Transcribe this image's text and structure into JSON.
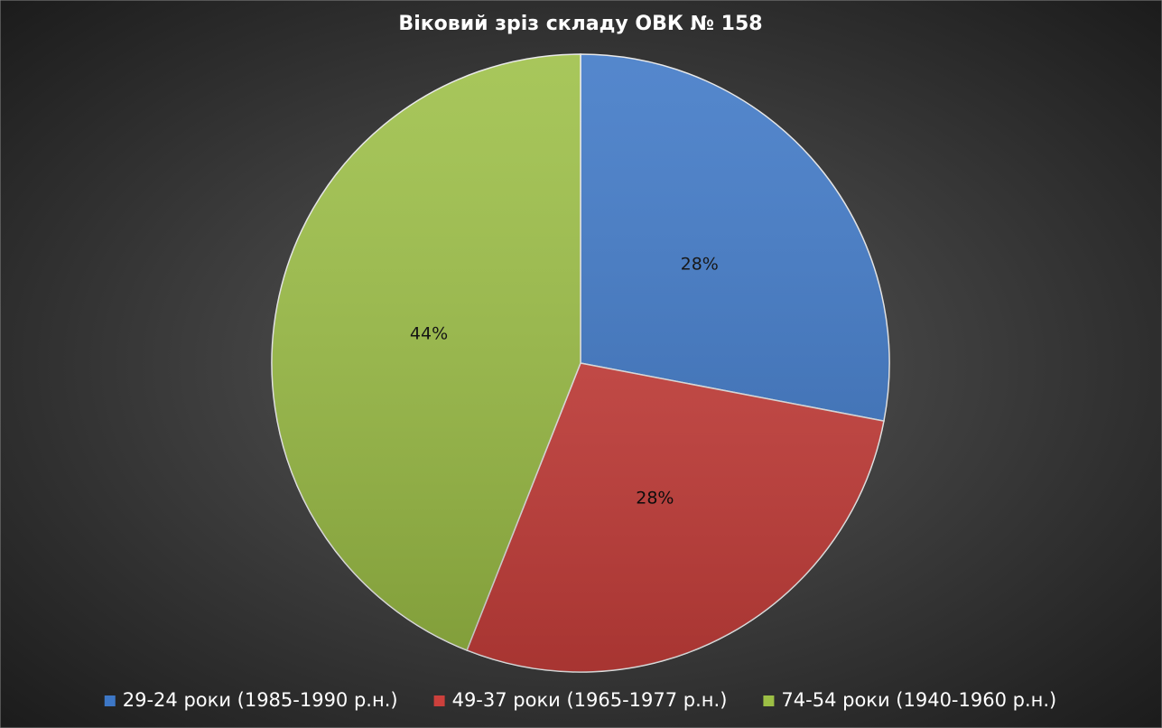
{
  "chart_data": {
    "type": "pie",
    "title": "Віковий зріз складу ОВК № 158",
    "categories": [
      "29-24 роки (1985-1990 р.н.)",
      "49-37 роки (1965-1977 р.н.)",
      "74-54 роки (1940-1960 р.н.)"
    ],
    "values": [
      28,
      28,
      44
    ],
    "value_labels": [
      "28%",
      "28%",
      "44%"
    ],
    "colors": [
      "#3d77c6",
      "#cc403c",
      "#9cbf45"
    ],
    "legend": "bottom"
  }
}
